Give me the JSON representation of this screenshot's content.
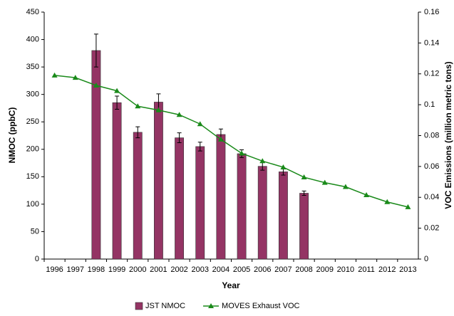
{
  "chart_data": {
    "type": "bar-line",
    "x_label": "Year",
    "y_label": "NMOC (ppbC)",
    "y2_label": "VOC Emissions (million metric tons)",
    "categories": [
      "1996",
      "1997",
      "1998",
      "1999",
      "2000",
      "2001",
      "2002",
      "2003",
      "2004",
      "2005",
      "2006",
      "2007",
      "2008",
      "2009",
      "2010",
      "2011",
      "2012",
      "2013"
    ],
    "series": [
      {
        "name": "JST NMOC",
        "type": "bar",
        "color": "#943464",
        "values": [
          null,
          null,
          380,
          285,
          231,
          286,
          221,
          205,
          227,
          192,
          169,
          159,
          120,
          null,
          null,
          null,
          null,
          null
        ],
        "errors": [
          null,
          null,
          30,
          12,
          10,
          15,
          9,
          8,
          10,
          7,
          7,
          6,
          4,
          null,
          null,
          null,
          null,
          null
        ]
      },
      {
        "name": "MOVES Exhaust VOC",
        "type": "line",
        "axis": "y2",
        "color": "#1a8a1a",
        "values": [
          0.119,
          0.1175,
          0.1125,
          0.109,
          0.099,
          0.0965,
          0.0935,
          0.0875,
          0.0775,
          0.0685,
          0.0635,
          0.0595,
          0.053,
          0.0495,
          0.0468,
          0.0415,
          0.037,
          0.0337
        ]
      }
    ],
    "ylim": [
      0,
      450
    ],
    "yticks": [
      0,
      50,
      100,
      150,
      200,
      250,
      300,
      350,
      400,
      450
    ],
    "y2lim": [
      0,
      0.16
    ],
    "y2ticks": [
      0,
      0.02,
      0.04,
      0.06,
      0.08,
      0.1,
      0.12,
      0.14,
      0.16
    ],
    "legend": "bottom"
  }
}
